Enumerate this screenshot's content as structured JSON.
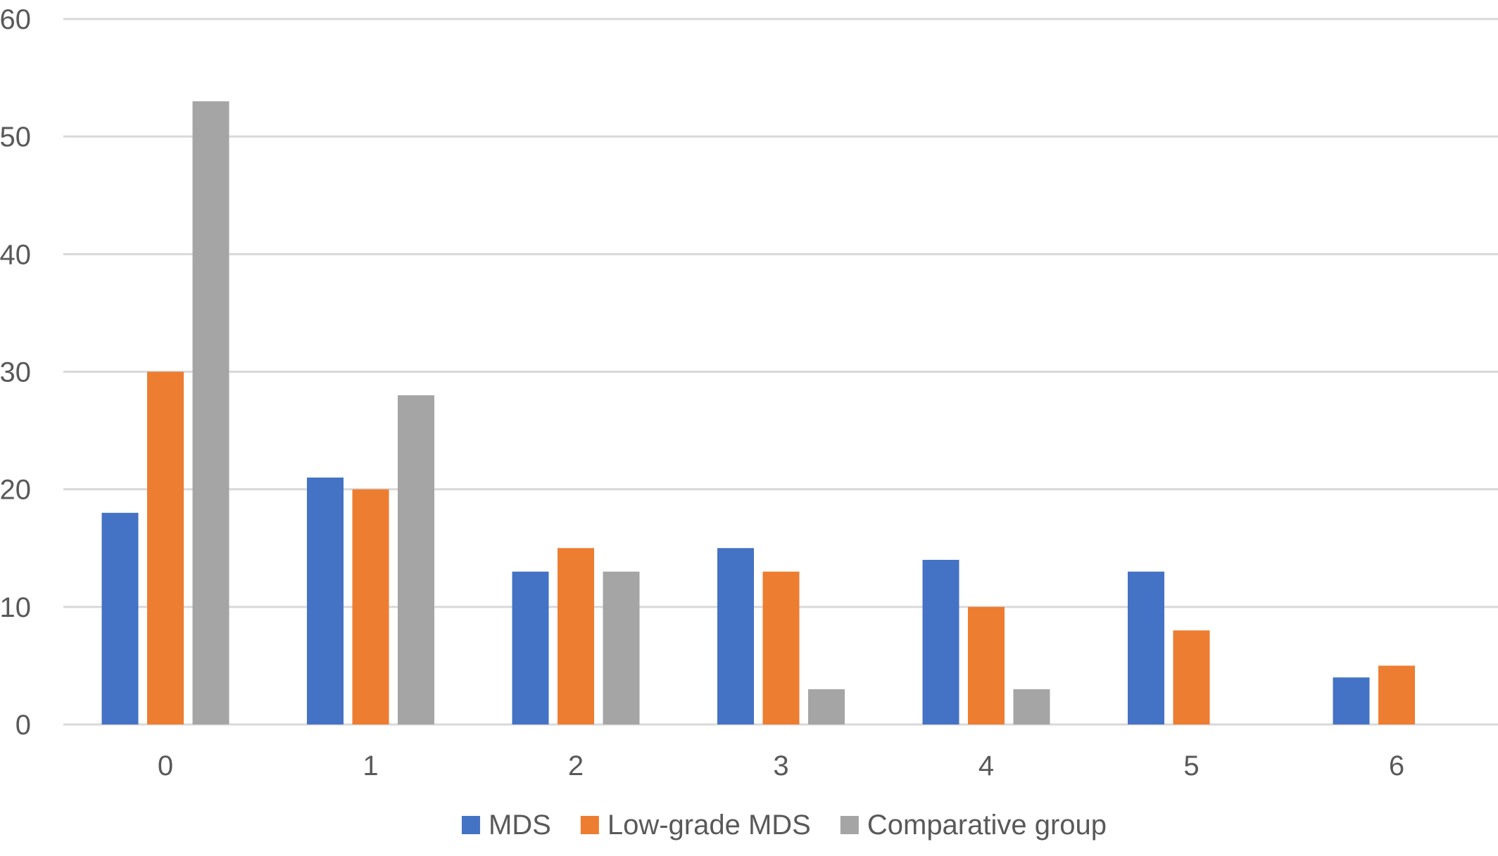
{
  "chart_data": {
    "type": "bar",
    "title": "",
    "xlabel": "",
    "ylabel": "",
    "categories": [
      "0",
      "1",
      "2",
      "3",
      "4",
      "5",
      "6"
    ],
    "series": [
      {
        "name": "MDS",
        "color": "#4472c4",
        "values": [
          18,
          21,
          13,
          15,
          14,
          13,
          4
        ]
      },
      {
        "name": "Low-grade MDS",
        "color": "#ed7d31",
        "values": [
          30,
          20,
          15,
          13,
          10,
          8,
          5
        ]
      },
      {
        "name": "Comparative group",
        "color": "#a5a5a5",
        "values": [
          53,
          28,
          13,
          3,
          3,
          0,
          0
        ]
      }
    ],
    "ylim": [
      0,
      60
    ],
    "yticks": [
      0,
      10,
      20,
      30,
      40,
      50,
      60
    ],
    "grid": true,
    "legend": "bottom-center"
  }
}
